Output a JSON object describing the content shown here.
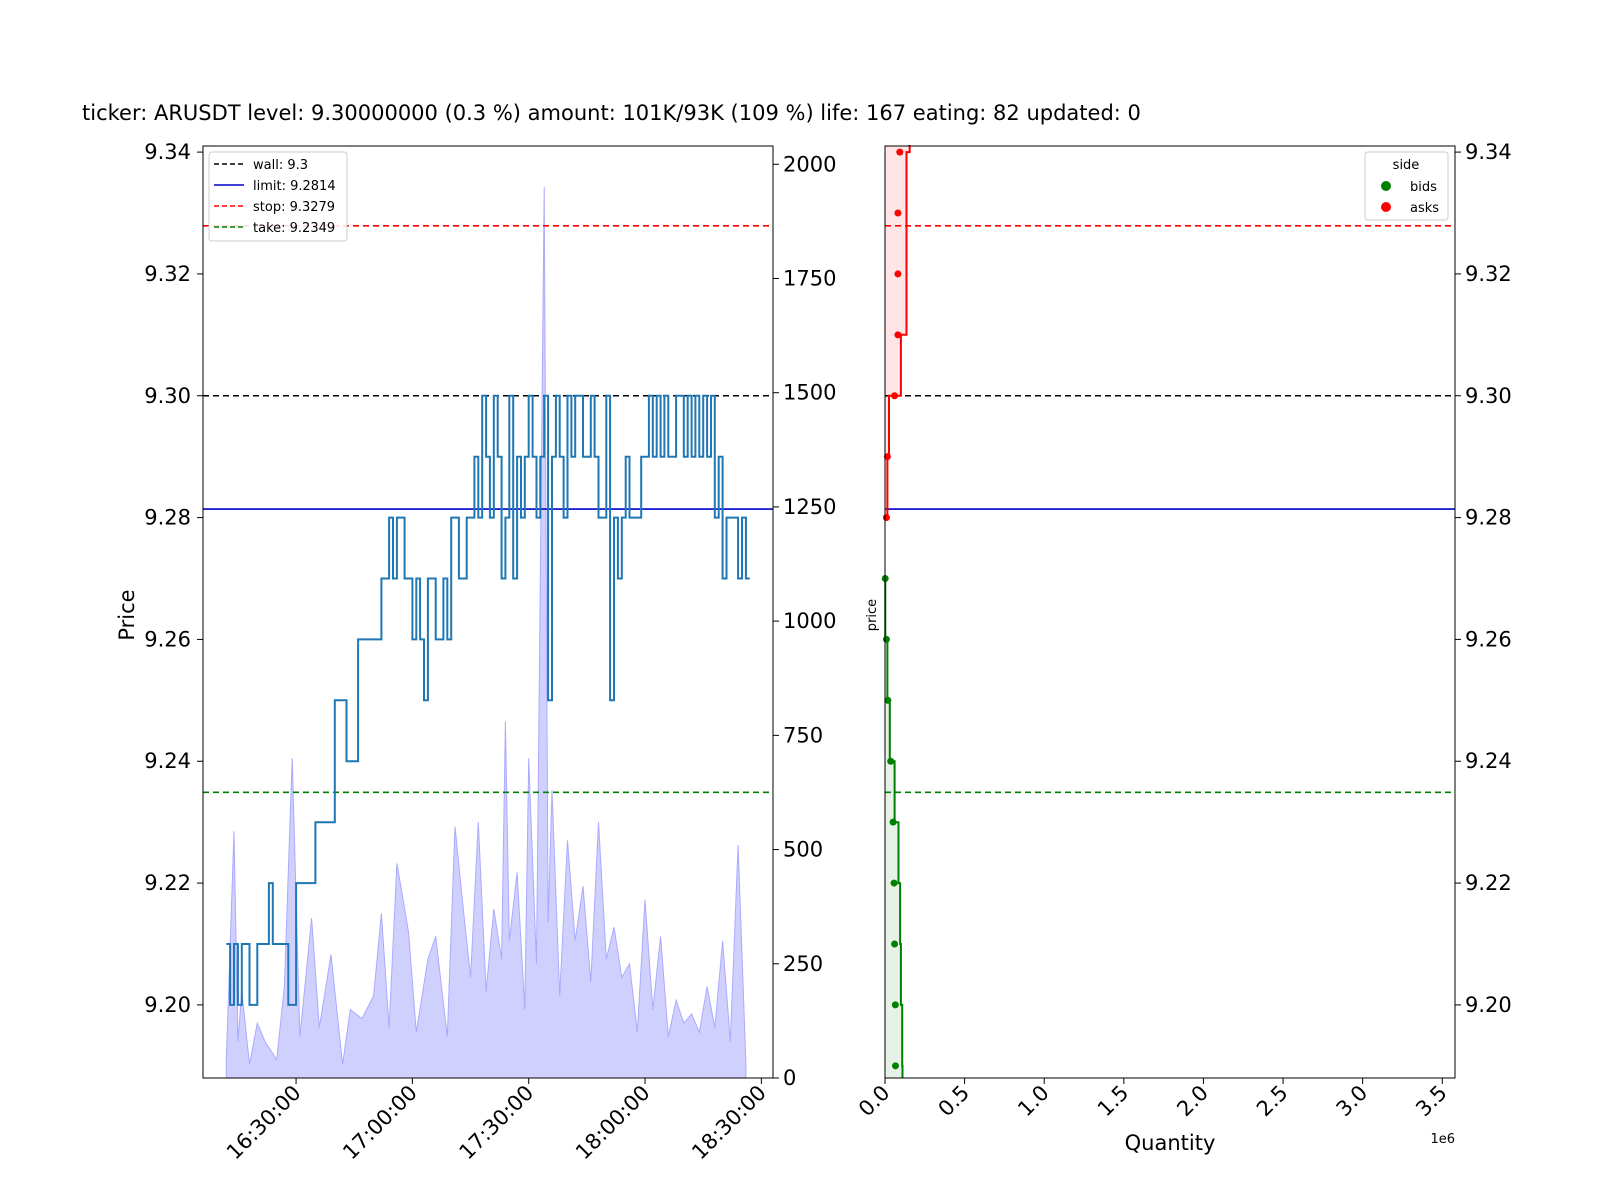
{
  "title": "ticker: ARUSDT level: 9.30000000 (0.3 %) amount: 101K/93K (109 %)  life: 167 eating: 82 updated: 0",
  "colors": {
    "price_line": "#1f77b4",
    "volume": "#aaaaff",
    "wall": "#000000",
    "limit": "#0000cc",
    "stop": "#ff0000",
    "take": "#008000",
    "bids": "#008000",
    "asks": "#ff0000"
  },
  "chart_data": [
    {
      "type": "line",
      "name": "price-chart",
      "ylabel": "Price",
      "ylabel_right": "",
      "xlabel": "",
      "xlim": [
        "16:06:00",
        "18:33:00"
      ],
      "ylim": [
        9.188,
        9.341
      ],
      "ylim_right": [
        0,
        2040
      ],
      "x_ticks": [
        "16:30:00",
        "17:00:00",
        "17:30:00",
        "18:00:00",
        "18:30:00"
      ],
      "y_ticks": [
        "9.20",
        "9.22",
        "9.24",
        "9.26",
        "9.28",
        "9.30",
        "9.32",
        "9.34"
      ],
      "y_right_ticks": [
        "0",
        "250",
        "500",
        "750",
        "1000",
        "1250",
        "1500",
        "1750",
        "2000"
      ],
      "legend_position": "top-left",
      "levels": [
        {
          "key": "wall",
          "label": "wall: 9.3",
          "value": 9.3,
          "style": "dashed",
          "color": "#000000"
        },
        {
          "key": "limit",
          "label": "limit: 9.2814",
          "value": 9.2814,
          "style": "solid",
          "color": "#0000cc"
        },
        {
          "key": "stop",
          "label": "stop: 9.3279",
          "value": 9.3279,
          "style": "dashed",
          "color": "#ff0000"
        },
        {
          "key": "take",
          "label": "take: 9.2349",
          "value": 9.2349,
          "style": "dashed",
          "color": "#008000"
        }
      ],
      "price_series": {
        "x": [
          "16:12",
          "16:13",
          "16:14",
          "16:15",
          "16:16",
          "16:17",
          "16:18",
          "16:20",
          "16:22",
          "16:23",
          "16:24",
          "16:25",
          "16:26",
          "16:27",
          "16:28",
          "16:30",
          "16:31",
          "16:33",
          "16:35",
          "16:37",
          "16:40",
          "16:43",
          "16:46",
          "16:49",
          "16:52",
          "16:53",
          "16:54",
          "16:55",
          "16:56",
          "16:57",
          "16:58",
          "17:00",
          "17:01",
          "17:02",
          "17:03",
          "17:04",
          "17:06",
          "17:08",
          "17:09",
          "17:10",
          "17:11",
          "17:12",
          "17:13",
          "17:14",
          "17:15",
          "17:16",
          "17:17",
          "17:18",
          "17:19",
          "17:20",
          "17:21",
          "17:22",
          "17:23",
          "17:24",
          "17:25",
          "17:26",
          "17:27",
          "17:28",
          "17:29",
          "17:30",
          "17:31",
          "17:32",
          "17:33",
          "17:34",
          "17:35",
          "17:36",
          "17:37",
          "17:38",
          "17:39",
          "17:40",
          "17:41",
          "17:42",
          "17:44",
          "17:46",
          "17:47",
          "17:48",
          "17:50",
          "17:51",
          "17:52",
          "17:53",
          "17:54",
          "17:55",
          "17:56",
          "17:58",
          "17:59",
          "18:00",
          "18:01",
          "18:02",
          "18:03",
          "18:04",
          "18:05",
          "18:06",
          "18:08",
          "18:10",
          "18:11",
          "18:12",
          "18:13",
          "18:14",
          "18:15",
          "18:16",
          "18:17",
          "18:18",
          "18:19",
          "18:20",
          "18:21",
          "18:22",
          "18:23",
          "18:24",
          "18:25",
          "18:26",
          "18:27"
        ],
        "y": [
          9.21,
          9.2,
          9.21,
          9.2,
          9.21,
          9.21,
          9.2,
          9.21,
          9.21,
          9.22,
          9.21,
          9.21,
          9.21,
          9.21,
          9.2,
          9.22,
          9.22,
          9.22,
          9.23,
          9.23,
          9.25,
          9.24,
          9.26,
          9.26,
          9.27,
          9.27,
          9.28,
          9.27,
          9.28,
          9.28,
          9.27,
          9.26,
          9.27,
          9.26,
          9.25,
          9.27,
          9.26,
          9.27,
          9.26,
          9.28,
          9.28,
          9.27,
          9.27,
          9.28,
          9.28,
          9.29,
          9.28,
          9.3,
          9.29,
          9.28,
          9.3,
          9.29,
          9.27,
          9.28,
          9.3,
          9.27,
          9.29,
          9.28,
          9.29,
          9.3,
          9.29,
          9.28,
          9.29,
          9.3,
          9.25,
          9.29,
          9.3,
          9.29,
          9.28,
          9.3,
          9.29,
          9.3,
          9.29,
          9.3,
          9.29,
          9.28,
          9.3,
          9.25,
          9.28,
          9.27,
          9.28,
          9.29,
          9.28,
          9.28,
          9.29,
          9.29,
          9.3,
          9.29,
          9.3,
          9.29,
          9.3,
          9.29,
          9.3,
          9.29,
          9.3,
          9.29,
          9.3,
          9.29,
          9.3,
          9.29,
          9.3,
          9.28,
          9.29,
          9.27,
          9.28,
          9.28,
          9.28,
          9.27,
          9.28,
          9.27,
          9.27
        ]
      },
      "volume_series": {
        "x": [
          "16:12",
          "16:14",
          "16:15",
          "16:16",
          "16:18",
          "16:20",
          "16:22",
          "16:25",
          "16:27",
          "16:29",
          "16:31",
          "16:34",
          "16:36",
          "16:39",
          "16:42",
          "16:44",
          "16:47",
          "16:50",
          "16:52",
          "16:54",
          "16:56",
          "16:59",
          "17:01",
          "17:04",
          "17:06",
          "17:09",
          "17:11",
          "17:13",
          "17:15",
          "17:17",
          "17:19",
          "17:21",
          "17:23",
          "17:24",
          "17:25",
          "17:27",
          "17:29",
          "17:30",
          "17:32",
          "17:34",
          "17:35",
          "17:36",
          "17:38",
          "17:40",
          "17:42",
          "17:44",
          "17:46",
          "17:48",
          "17:50",
          "17:52",
          "17:54",
          "17:56",
          "17:58",
          "18:00",
          "18:02",
          "18:04",
          "18:06",
          "18:08",
          "18:10",
          "18:12",
          "18:14",
          "18:16",
          "18:18",
          "18:20",
          "18:22",
          "18:24",
          "18:26"
        ],
        "y": [
          40,
          540,
          80,
          190,
          30,
          120,
          80,
          40,
          200,
          700,
          90,
          350,
          110,
          270,
          30,
          150,
          130,
          180,
          360,
          110,
          470,
          320,
          100,
          260,
          310,
          90,
          550,
          380,
          220,
          560,
          190,
          370,
          260,
          780,
          300,
          450,
          150,
          700,
          250,
          1950,
          340,
          630,
          180,
          520,
          300,
          420,
          210,
          560,
          260,
          330,
          220,
          250,
          100,
          390,
          150,
          310,
          90,
          170,
          120,
          140,
          100,
          200,
          110,
          300,
          80,
          510,
          30
        ]
      }
    },
    {
      "type": "line",
      "name": "depth-chart",
      "xlabel": "Quantity",
      "x_offset_label": "1e6",
      "ylabel": "price",
      "xlim": [
        0,
        3.58
      ],
      "ylim": [
        9.188,
        9.341
      ],
      "x_ticks": [
        "0.0",
        "0.5",
        "1.0",
        "1.5",
        "2.0",
        "2.5",
        "3.0",
        "3.5"
      ],
      "y_ticks": [
        "9.20",
        "9.22",
        "9.24",
        "9.26",
        "9.28",
        "9.30",
        "9.32",
        "9.34"
      ],
      "legend_title": "side",
      "legend_position": "top-right",
      "series": [
        {
          "name": "bids",
          "color": "#008000",
          "price": [
            9.27,
            9.26,
            9.25,
            9.24,
            9.23,
            9.22,
            9.21,
            9.2,
            9.19,
            9.188
          ],
          "quantity": [
            0.002,
            0.015,
            0.03,
            0.06,
            0.085,
            0.095,
            0.1,
            0.108,
            0.11,
            0.11
          ]
        },
        {
          "name": "asks",
          "color": "#ff0000",
          "price": [
            9.28,
            9.29,
            9.3,
            9.31,
            9.32,
            9.33,
            9.34,
            9.341
          ],
          "quantity": [
            0.015,
            0.025,
            0.1,
            0.135,
            0.135,
            0.135,
            0.155,
            0.16
          ]
        }
      ],
      "levels": [
        {
          "key": "wall",
          "value": 9.3,
          "style": "dashed",
          "color": "#000000"
        },
        {
          "key": "limit",
          "value": 9.2814,
          "style": "solid",
          "color": "#0000cc"
        },
        {
          "key": "stop",
          "value": 9.3279,
          "style": "dashed",
          "color": "#ff0000"
        },
        {
          "key": "take",
          "value": 9.2349,
          "style": "dashed",
          "color": "#008000"
        }
      ]
    }
  ]
}
